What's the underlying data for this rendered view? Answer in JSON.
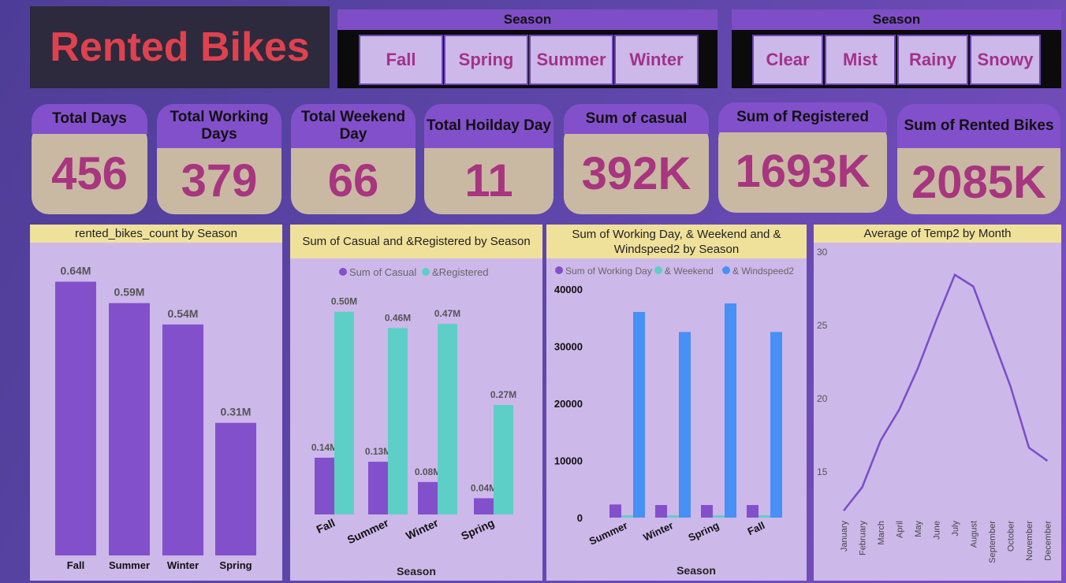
{
  "title": "Rented Bikes",
  "slicer_season": {
    "header": "Season",
    "options": [
      "Fall",
      "Spring",
      "Summer",
      "Winter"
    ]
  },
  "slicer_weather": {
    "header": "Season",
    "options": [
      "Clear",
      "Mist",
      "Rainy",
      "Snowy"
    ]
  },
  "kpis": [
    {
      "label": "Total Days",
      "value": "456"
    },
    {
      "label": "Total Working Days",
      "value": "379"
    },
    {
      "label": "Total Weekend Day",
      "value": "66"
    },
    {
      "label": "Total Hoilday Day",
      "value": "11"
    },
    {
      "label": "Sum of casual",
      "value": "392K"
    },
    {
      "label": "Sum of Registered",
      "value": "1693K"
    },
    {
      "label": "Sum of Rented Bikes",
      "value": "2085K"
    }
  ],
  "colors": {
    "purple": "#8350cc",
    "teal": "#5ecfc6",
    "blue": "#4790f5",
    "kpi_value": "#a8357f",
    "line": "#7a4ccb"
  },
  "chart_data": [
    {
      "type": "bar",
      "title": "rented_bikes_count by Season",
      "categories": [
        "Fall",
        "Summer",
        "Winter",
        "Spring"
      ],
      "values": [
        0.64,
        0.59,
        0.54,
        0.31
      ],
      "data_labels": [
        "0.64M",
        "0.59M",
        "0.54M",
        "0.31M"
      ],
      "ylim": [
        0,
        0.7
      ]
    },
    {
      "type": "bar",
      "title": "Sum of Casual and &Registered by Season",
      "categories": [
        "Fall",
        "Summer",
        "Winter",
        "Spring"
      ],
      "xlabel": "Season",
      "series": [
        {
          "name": "Sum of Casual",
          "values": [
            0.14,
            0.13,
            0.08,
            0.04
          ],
          "labels": [
            "0.14M",
            "0.13M",
            "0.08M",
            "0.04M"
          ]
        },
        {
          "name": "&Registered",
          "values": [
            0.5,
            0.46,
            0.47,
            0.27
          ],
          "labels": [
            "0.50M",
            "0.46M",
            "0.47M",
            "0.27M"
          ]
        }
      ],
      "legend": "top",
      "ylim": [
        0,
        0.55
      ]
    },
    {
      "type": "bar",
      "title": "Sum of Working Day, & Weekend and & Windspeed2 by Season",
      "categories": [
        "Summer",
        "Winter",
        "Spring",
        "Fall"
      ],
      "xlabel": "Season",
      "series": [
        {
          "name": "Sum of Working Day",
          "values": [
            2300,
            2200,
            2200,
            2200
          ]
        },
        {
          "name": "& Weekend",
          "values": [
            400,
            400,
            400,
            400
          ]
        },
        {
          "name": "& Windspeed2",
          "values": [
            36000,
            32500,
            37500,
            32500
          ]
        }
      ],
      "yticks": [
        "0",
        "10000",
        "20000",
        "30000",
        "40000"
      ],
      "ylim": [
        0,
        40000
      ],
      "legend": "top"
    },
    {
      "type": "line",
      "title": "Average of Temp2 by Month",
      "categories": [
        "January",
        "February",
        "March",
        "April",
        "May",
        "June",
        "July",
        "August",
        "September",
        "October",
        "November",
        "December"
      ],
      "values": [
        12.3,
        13.9,
        17.1,
        19.2,
        22.0,
        25.3,
        28.4,
        27.6,
        24.2,
        20.8,
        16.6,
        15.7
      ],
      "yticks": [
        "15",
        "20",
        "25",
        "30"
      ],
      "ylim": [
        10,
        30
      ]
    }
  ]
}
